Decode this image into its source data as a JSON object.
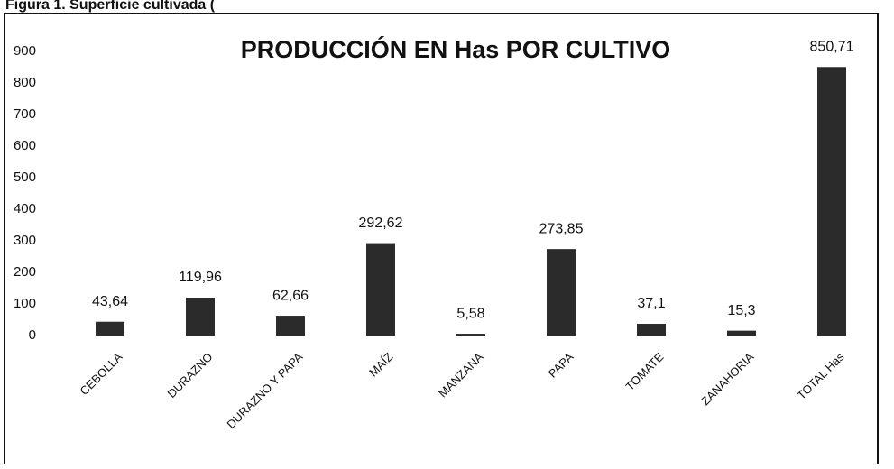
{
  "figure_caption": "Figura 1. Superficie cultivada (",
  "chart_data": {
    "type": "bar",
    "title": "PRODUCCIÓN EN Has POR CULTIVO",
    "categories": [
      "CEBOLLA",
      "DURAZNO",
      "DURAZNO Y PAPA",
      "MAÍZ",
      "MANZANA",
      "PAPA",
      "TOMATE",
      "ZANAHORIA",
      "TOTAL Has"
    ],
    "values": [
      43.64,
      119.96,
      62.66,
      292.62,
      5.58,
      273.85,
      37.1,
      15.3,
      850.71
    ],
    "value_labels": [
      "43,64",
      "119,96",
      "62,66",
      "292,62",
      "5,58",
      "273,85",
      "37,1",
      "15,3",
      "850,71"
    ],
    "color": "#2b2b2b",
    "ylim": [
      0,
      900
    ],
    "yticks": [
      0,
      100,
      200,
      300,
      400,
      500,
      600,
      700,
      800,
      900
    ],
    "grid": false
  }
}
